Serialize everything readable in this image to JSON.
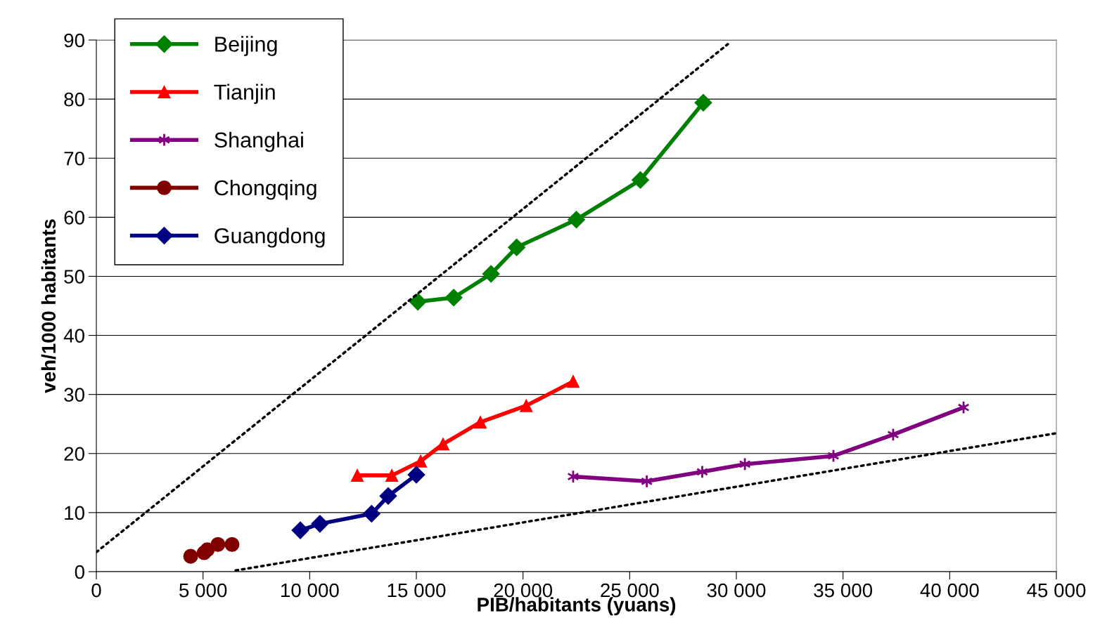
{
  "chart_data": {
    "type": "line",
    "xlabel": "PIB/habitants (yuans)",
    "ylabel": "veh/1000 habitants",
    "xlim": [
      0,
      45000
    ],
    "ylim": [
      0,
      90
    ],
    "xticks": [
      0,
      {
        "value": 5000,
        "label": "5 000"
      },
      {
        "value": 10000,
        "label": "10 000"
      },
      {
        "value": 15000,
        "label": "15 000"
      },
      {
        "value": 20000,
        "label": "20 000"
      },
      {
        "value": 25000,
        "label": "25 000"
      },
      {
        "value": 30000,
        "label": "30 000"
      },
      {
        "value": 35000,
        "label": "35 000"
      },
      {
        "value": 40000,
        "label": "40 000"
      },
      {
        "value": 45000,
        "label": "45 000"
      }
    ],
    "yticks": [
      0,
      10,
      20,
      30,
      40,
      50,
      60,
      70,
      80,
      90
    ],
    "grid": "y",
    "legend": "top left",
    "line_style": "solid",
    "series": [
      {
        "name": "Beijing",
        "color": "#008000",
        "marker": "diamond",
        "x": [
          15070,
          16750,
          18500,
          19700,
          22500,
          25500,
          28450
        ],
        "values": [
          45.7,
          46.4,
          50.4,
          54.9,
          59.6,
          66.3,
          79.4
        ]
      },
      {
        "name": "Tianjin",
        "color": "#ff0000",
        "marker": "triangle",
        "x": [
          12230,
          13850,
          15200,
          16250,
          18000,
          20150,
          22350
        ],
        "values": [
          16.3,
          16.3,
          18.7,
          21.6,
          25.3,
          28.1,
          32.2
        ]
      },
      {
        "name": "Shanghai",
        "color": "#800080",
        "marker": "cross",
        "x": [
          22350,
          25800,
          28400,
          30400,
          34550,
          37350,
          40650
        ],
        "values": [
          16.1,
          15.3,
          16.9,
          18.2,
          19.6,
          23.2,
          27.8
        ]
      },
      {
        "name": "Chongqing",
        "type": "scatter",
        "color": "#800000",
        "marker": "circle",
        "x": [
          4420,
          5050,
          5200,
          5700,
          6360
        ],
        "values": [
          2.6,
          3.2,
          3.7,
          4.6,
          4.6
        ]
      },
      {
        "name": "Guangdong",
        "color": "#000080",
        "marker": "diamond",
        "x": [
          9560,
          10480,
          12900,
          13680,
          15000
        ],
        "values": [
          7.0,
          8.1,
          9.8,
          12.8,
          16.4
        ]
      },
      {
        "color": "#000000",
        "marker": "none",
        "line_style": "dotted",
        "x": [
          0,
          29600
        ],
        "values": [
          3.3,
          89.3
        ]
      },
      {
        "color": "#000000",
        "marker": "none",
        "line_style": "dotted",
        "x": [
          6530,
          44940
        ],
        "values": [
          0.2,
          23.4
        ]
      }
    ]
  }
}
